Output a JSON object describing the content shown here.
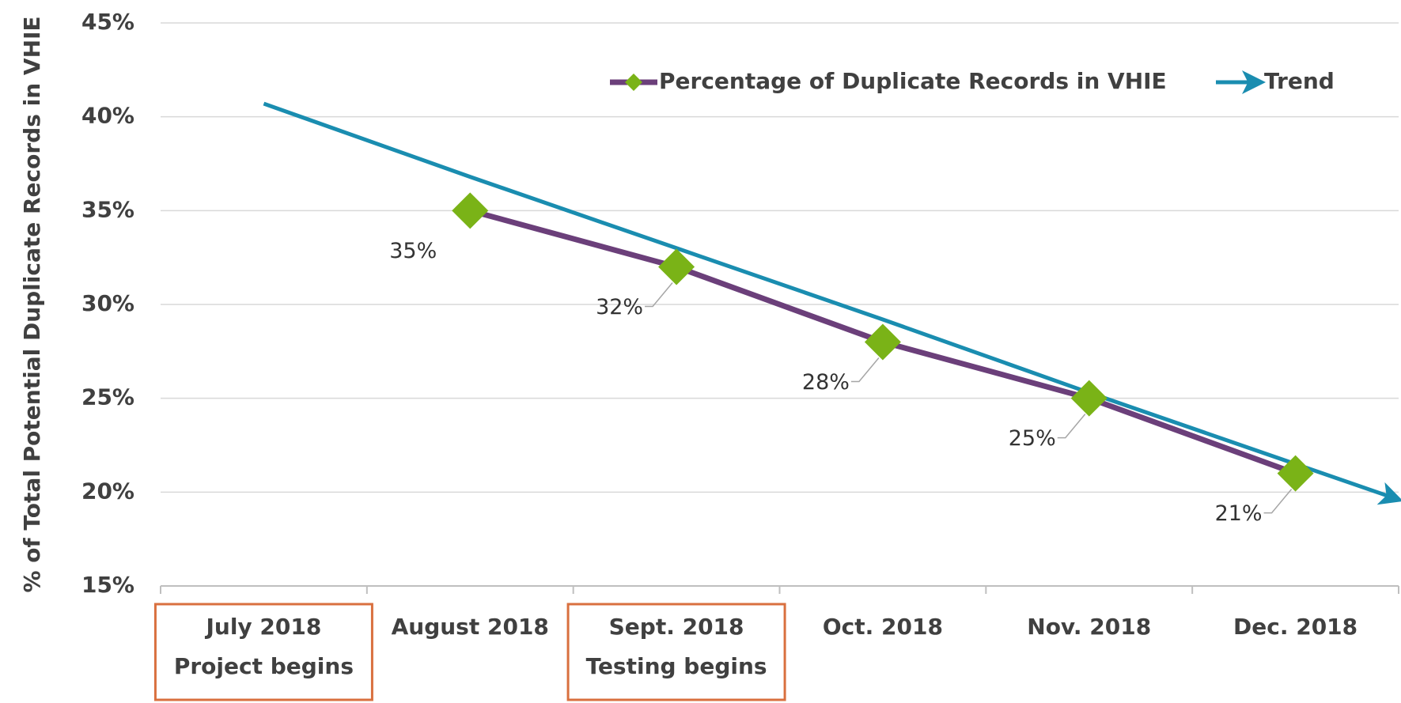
{
  "chart_data": {
    "type": "line",
    "y_axis_label": "% of Total Potential Duplicate Records in VHIE",
    "categories": [
      "July 2018",
      "August 2018",
      "Sept. 2018",
      "Oct. 2018",
      "Nov. 2018",
      "Dec. 2018"
    ],
    "category_notes": [
      "Project begins",
      null,
      "Testing begins",
      null,
      null,
      null
    ],
    "series": [
      {
        "name": "Percentage of Duplicate Records in VHIE",
        "color": "#6b3f7a",
        "marker_color": "#7ab317",
        "values": [
          null,
          35,
          32,
          28,
          25,
          21
        ],
        "value_labels": [
          null,
          "35%",
          "32%",
          "28%",
          "25%",
          "21%"
        ]
      },
      {
        "name": "Trend",
        "color": "#1a8db0",
        "values": [
          40.7,
          36.8,
          33.0,
          29.2,
          25.3,
          21.5
        ]
      }
    ],
    "ylim": [
      15,
      45
    ],
    "yticks": [
      {
        "value": 15,
        "label": "15%"
      },
      {
        "value": 20,
        "label": "20%"
      },
      {
        "value": 25,
        "label": "25%"
      },
      {
        "value": 30,
        "label": "30%"
      },
      {
        "value": 35,
        "label": "35%"
      },
      {
        "value": 40,
        "label": "40%"
      },
      {
        "value": 45,
        "label": "45%"
      }
    ],
    "grid": true,
    "legend": "top-right"
  }
}
